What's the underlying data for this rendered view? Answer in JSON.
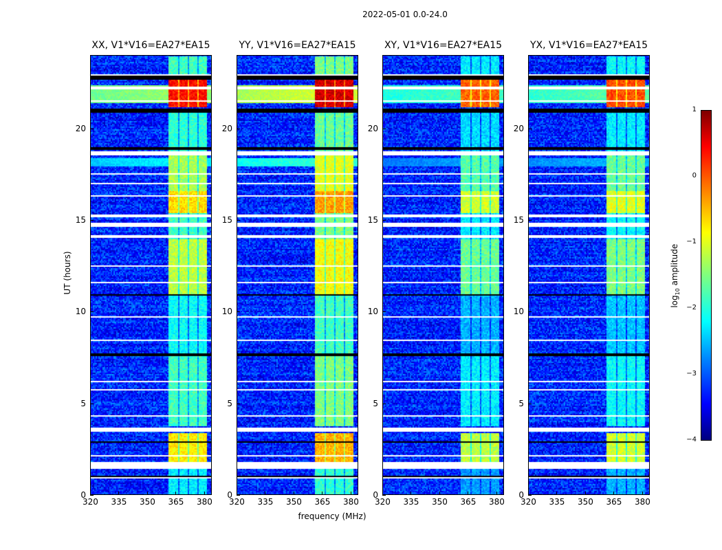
{
  "suptitle": "2022-05-01 0.0-24.0",
  "chart_data": {
    "type": "heatmap",
    "xlabel": "frequency (MHz)",
    "ylabel": "UT (hours)",
    "xlim": [
      320,
      384
    ],
    "ylim": [
      0,
      24
    ],
    "xticks": [
      320,
      335,
      350,
      365,
      380
    ],
    "yticks": [
      0,
      5,
      10,
      15,
      20
    ],
    "panels": [
      {
        "title": "XX, V1*V16=EA27*EA15",
        "offset": 0.0
      },
      {
        "title": "YY, V1*V16=EA27*EA15",
        "offset": 0.3
      },
      {
        "title": "XY, V1*V16=EA27*EA15",
        "offset": -0.4
      },
      {
        "title": "YX, V1*V16=EA27*EA15",
        "offset": -0.3
      }
    ],
    "background_log_amplitude": -3.2,
    "rfi_band_mhz": [
      [
        361,
        366
      ],
      [
        367,
        371
      ],
      [
        372,
        376
      ],
      [
        377,
        381
      ]
    ],
    "rfi_log_amplitude_by_hour": [
      {
        "from": 0,
        "to": 1.6,
        "value": -2.2
      },
      {
        "from": 1.6,
        "to": 3.4,
        "value": -0.8
      },
      {
        "from": 3.8,
        "to": 7.6,
        "value": -1.8
      },
      {
        "from": 7.8,
        "to": 11,
        "value": -2.1
      },
      {
        "from": 11,
        "to": 14,
        "value": -1.2
      },
      {
        "from": 14,
        "to": 15.4,
        "value": -1.8
      },
      {
        "from": 15.4,
        "to": 16.6,
        "value": -0.7
      },
      {
        "from": 16.6,
        "to": 18.6,
        "value": -1.3
      },
      {
        "from": 18.8,
        "to": 21,
        "value": -1.9
      },
      {
        "from": 21.2,
        "to": 23,
        "value": 0.3
      },
      {
        "from": 23,
        "to": 24,
        "value": -1.8
      }
    ],
    "broadband_log_amplitude_by_hour": [
      {
        "from": 21.4,
        "to": 22.4,
        "value": -1.4
      },
      {
        "from": 18.0,
        "to": 18.4,
        "value": -2.2
      }
    ],
    "flagged_hours_white": [
      [
        0.9,
        1.0
      ],
      [
        1.5,
        1.8
      ],
      [
        2.1,
        2.2
      ],
      [
        3.5,
        3.7
      ],
      [
        4.3,
        4.4
      ],
      [
        5.7,
        5.8
      ],
      [
        6.2,
        6.3
      ],
      [
        8.4,
        8.5
      ],
      [
        9.7,
        9.8
      ],
      [
        11.6,
        11.7
      ],
      [
        12.5,
        12.6
      ],
      [
        14.1,
        14.2
      ],
      [
        14.7,
        14.9
      ],
      [
        15.2,
        15.3
      ],
      [
        16.3,
        16.4
      ],
      [
        17.0,
        17.1
      ],
      [
        17.5,
        17.6
      ],
      [
        18.6,
        18.8
      ],
      [
        21.5,
        21.6
      ],
      [
        22.2,
        22.3
      ],
      [
        22.9,
        23.0
      ]
    ],
    "flagged_hours_black": [
      [
        1.0,
        1.1
      ],
      [
        2.9,
        3.0
      ],
      [
        7.6,
        7.8
      ],
      [
        10.9,
        11.0
      ],
      [
        18.9,
        19.0
      ],
      [
        20.9,
        21.1
      ],
      [
        22.7,
        22.9
      ]
    ],
    "colorbar": {
      "label_prefix": "log",
      "label_sub": "10",
      "label_suffix": " amplitude",
      "range": [
        -4,
        1
      ],
      "ticks": [
        "1",
        "0",
        "−1",
        "−2",
        "−3",
        "−4"
      ],
      "colormap": "jet"
    }
  }
}
